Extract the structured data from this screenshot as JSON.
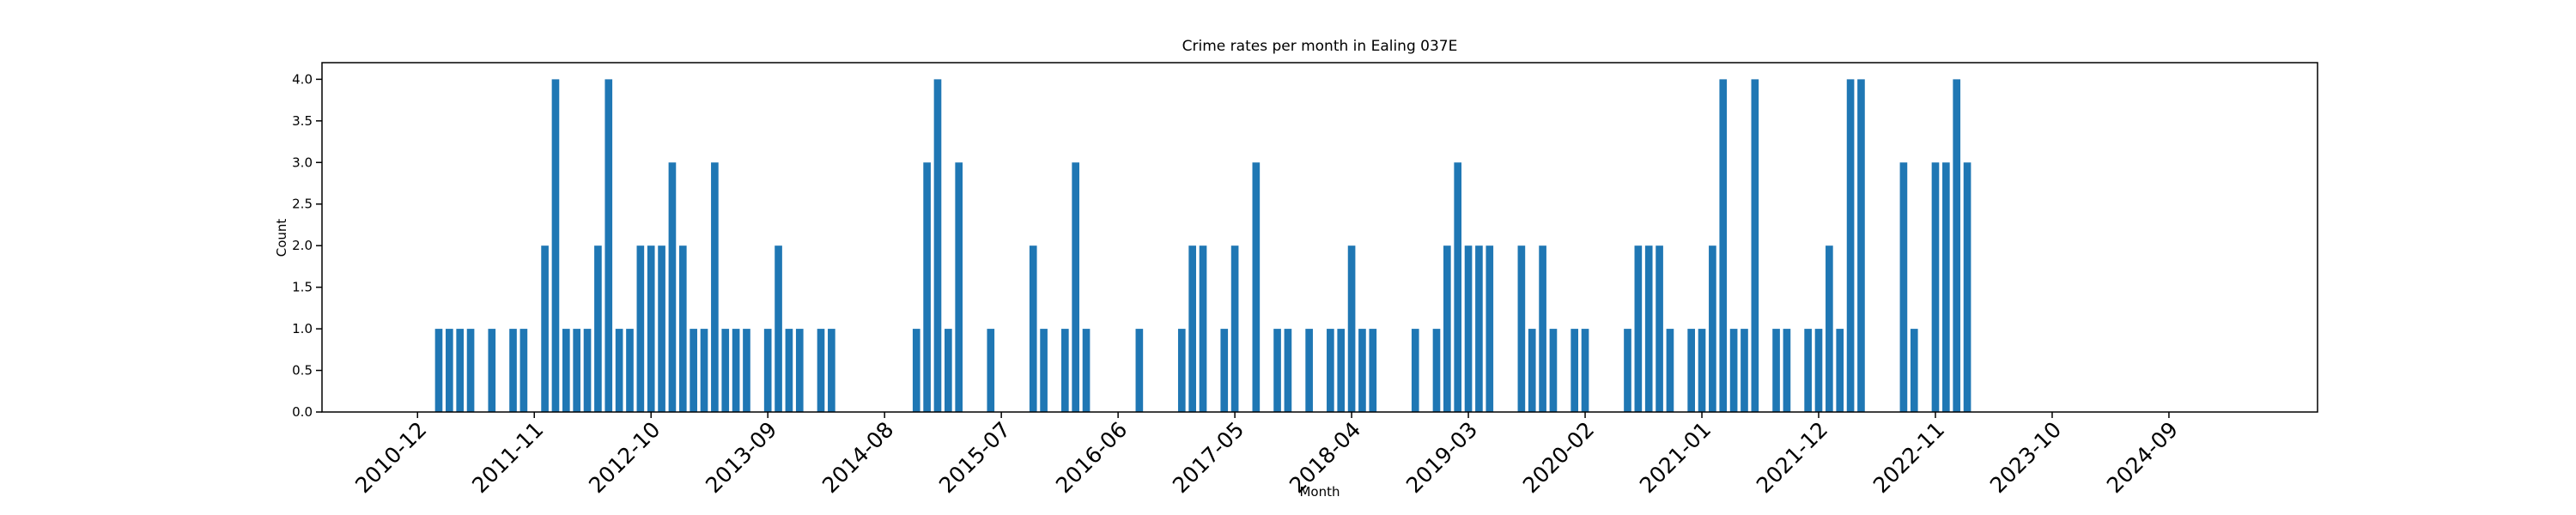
{
  "chart_data": {
    "type": "bar",
    "title": "Crime rates per month in Ealing 037E",
    "x_label": "Month",
    "y_label": "Count",
    "color": "#1f77b4",
    "x": [
      "2011-02",
      "2011-03",
      "2011-04",
      "2011-05",
      "2011-07",
      "2011-09",
      "2011-10",
      "2011-12",
      "2012-01",
      "2012-02",
      "2012-03",
      "2012-04",
      "2012-05",
      "2012-06",
      "2012-07",
      "2012-08",
      "2012-09",
      "2012-10",
      "2012-11",
      "2012-12",
      "2013-01",
      "2013-02",
      "2013-03",
      "2013-04",
      "2013-05",
      "2013-06",
      "2013-07",
      "2013-09",
      "2013-10",
      "2013-11",
      "2013-12",
      "2014-02",
      "2014-03",
      "2014-11",
      "2014-12",
      "2015-01",
      "2015-02",
      "2015-03",
      "2015-06",
      "2015-10",
      "2015-11",
      "2016-01",
      "2016-02",
      "2016-03",
      "2016-08",
      "2016-12",
      "2017-01",
      "2017-02",
      "2017-04",
      "2017-05",
      "2017-07",
      "2017-09",
      "2017-10",
      "2017-12",
      "2018-02",
      "2018-03",
      "2018-04",
      "2018-05",
      "2018-06",
      "2018-10",
      "2018-12",
      "2019-01",
      "2019-02",
      "2019-03",
      "2019-04",
      "2019-05",
      "2019-08",
      "2019-09",
      "2019-10",
      "2019-11",
      "2020-01",
      "2020-02",
      "2020-06",
      "2020-07",
      "2020-08",
      "2020-09",
      "2020-10",
      "2020-12",
      "2021-01",
      "2021-02",
      "2021-03",
      "2021-04",
      "2021-05",
      "2021-06",
      "2021-08",
      "2021-09",
      "2021-11",
      "2021-12",
      "2022-01",
      "2022-02",
      "2022-03",
      "2022-04",
      "2022-08",
      "2022-09",
      "2022-11",
      "2022-12",
      "2023-01",
      "2023-02"
    ],
    "values": [
      1,
      1,
      1,
      1,
      1,
      1,
      1,
      2,
      4,
      1,
      1,
      1,
      2,
      4,
      1,
      1,
      2,
      2,
      2,
      3,
      2,
      1,
      1,
      3,
      1,
      1,
      1,
      1,
      2,
      1,
      1,
      1,
      1,
      1,
      3,
      4,
      1,
      3,
      1,
      2,
      1,
      1,
      3,
      1,
      1,
      1,
      2,
      2,
      1,
      2,
      3,
      1,
      1,
      1,
      1,
      1,
      2,
      1,
      1,
      1,
      1,
      2,
      3,
      2,
      2,
      2,
      2,
      1,
      2,
      1,
      1,
      1,
      1,
      2,
      2,
      2,
      1,
      1,
      1,
      2,
      4,
      1,
      1,
      4,
      1,
      1,
      1,
      1,
      2,
      1,
      4,
      4,
      3,
      1,
      3,
      3,
      4,
      3
    ],
    "xlim": [
      "2010-03",
      "2025-11"
    ],
    "xticks": [
      "2010-12",
      "2011-11",
      "2012-10",
      "2013-09",
      "2014-08",
      "2015-07",
      "2016-06",
      "2017-05",
      "2018-04",
      "2019-03",
      "2020-02",
      "2021-01",
      "2021-12",
      "2022-11",
      "2023-10",
      "2024-09"
    ],
    "ylim": [
      0,
      4.2
    ],
    "yticks": [
      {
        "value": 0,
        "label": "0.0"
      },
      {
        "value": 0.5,
        "label": "0.5"
      },
      {
        "value": 1,
        "label": "1.0"
      },
      {
        "value": 1.5,
        "label": "1.5"
      },
      {
        "value": 2,
        "label": "2.0"
      },
      {
        "value": 2.5,
        "label": "2.5"
      },
      {
        "value": 3,
        "label": "3.0"
      },
      {
        "value": 3.5,
        "label": "3.5"
      },
      {
        "value": 4,
        "label": "4.0"
      }
    ]
  }
}
